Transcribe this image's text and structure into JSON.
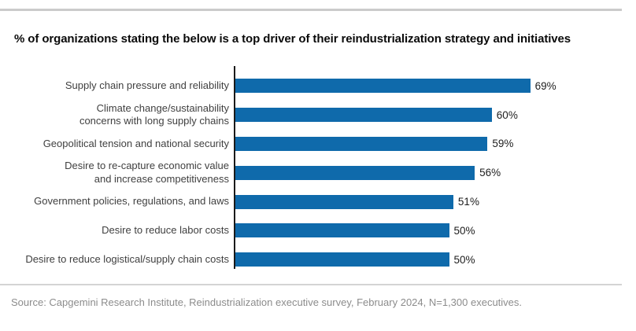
{
  "page": {
    "title": "% of organizations stating the below is a top driver of their reindustrialization strategy and initiatives",
    "source": "Source: Capgemini Research Institute, Reindustrialization executive survey, February 2024, N=1,300 executives."
  },
  "colors": {
    "bar": "#0f6aab",
    "axis": "#1a1a1a",
    "divider_top": "#cbcbcb",
    "divider_bottom": "#d4d4d4",
    "category_text": "#404040",
    "value_text": "#1d1d1d",
    "source_text": "#8c8c8c",
    "background": "#ffffff"
  },
  "chart_data": {
    "type": "bar",
    "orientation": "horizontal",
    "title": "% of organizations stating the below is a top driver of their reindustrialization strategy and initiatives",
    "categories": [
      "Supply chain pressure and reliability",
      "Climate change/sustainability\nconcerns with long supply chains",
      "Geopolitical tension and national security",
      "Desire to re-capture economic value\nand increase competitiveness",
      "Government policies, regulations, and laws",
      "Desire to reduce labor costs",
      "Desire to reduce logistical/supply chain costs"
    ],
    "values": [
      69,
      60,
      59,
      56,
      51,
      50,
      50
    ],
    "value_labels": [
      "69%",
      "60%",
      "59%",
      "56%",
      "51%",
      "50%",
      "50%"
    ],
    "xlabel": "",
    "ylabel": "",
    "xlim": [
      0,
      100
    ],
    "unit": "%",
    "grid": false,
    "legend": false,
    "data_labels": "outside-end"
  }
}
